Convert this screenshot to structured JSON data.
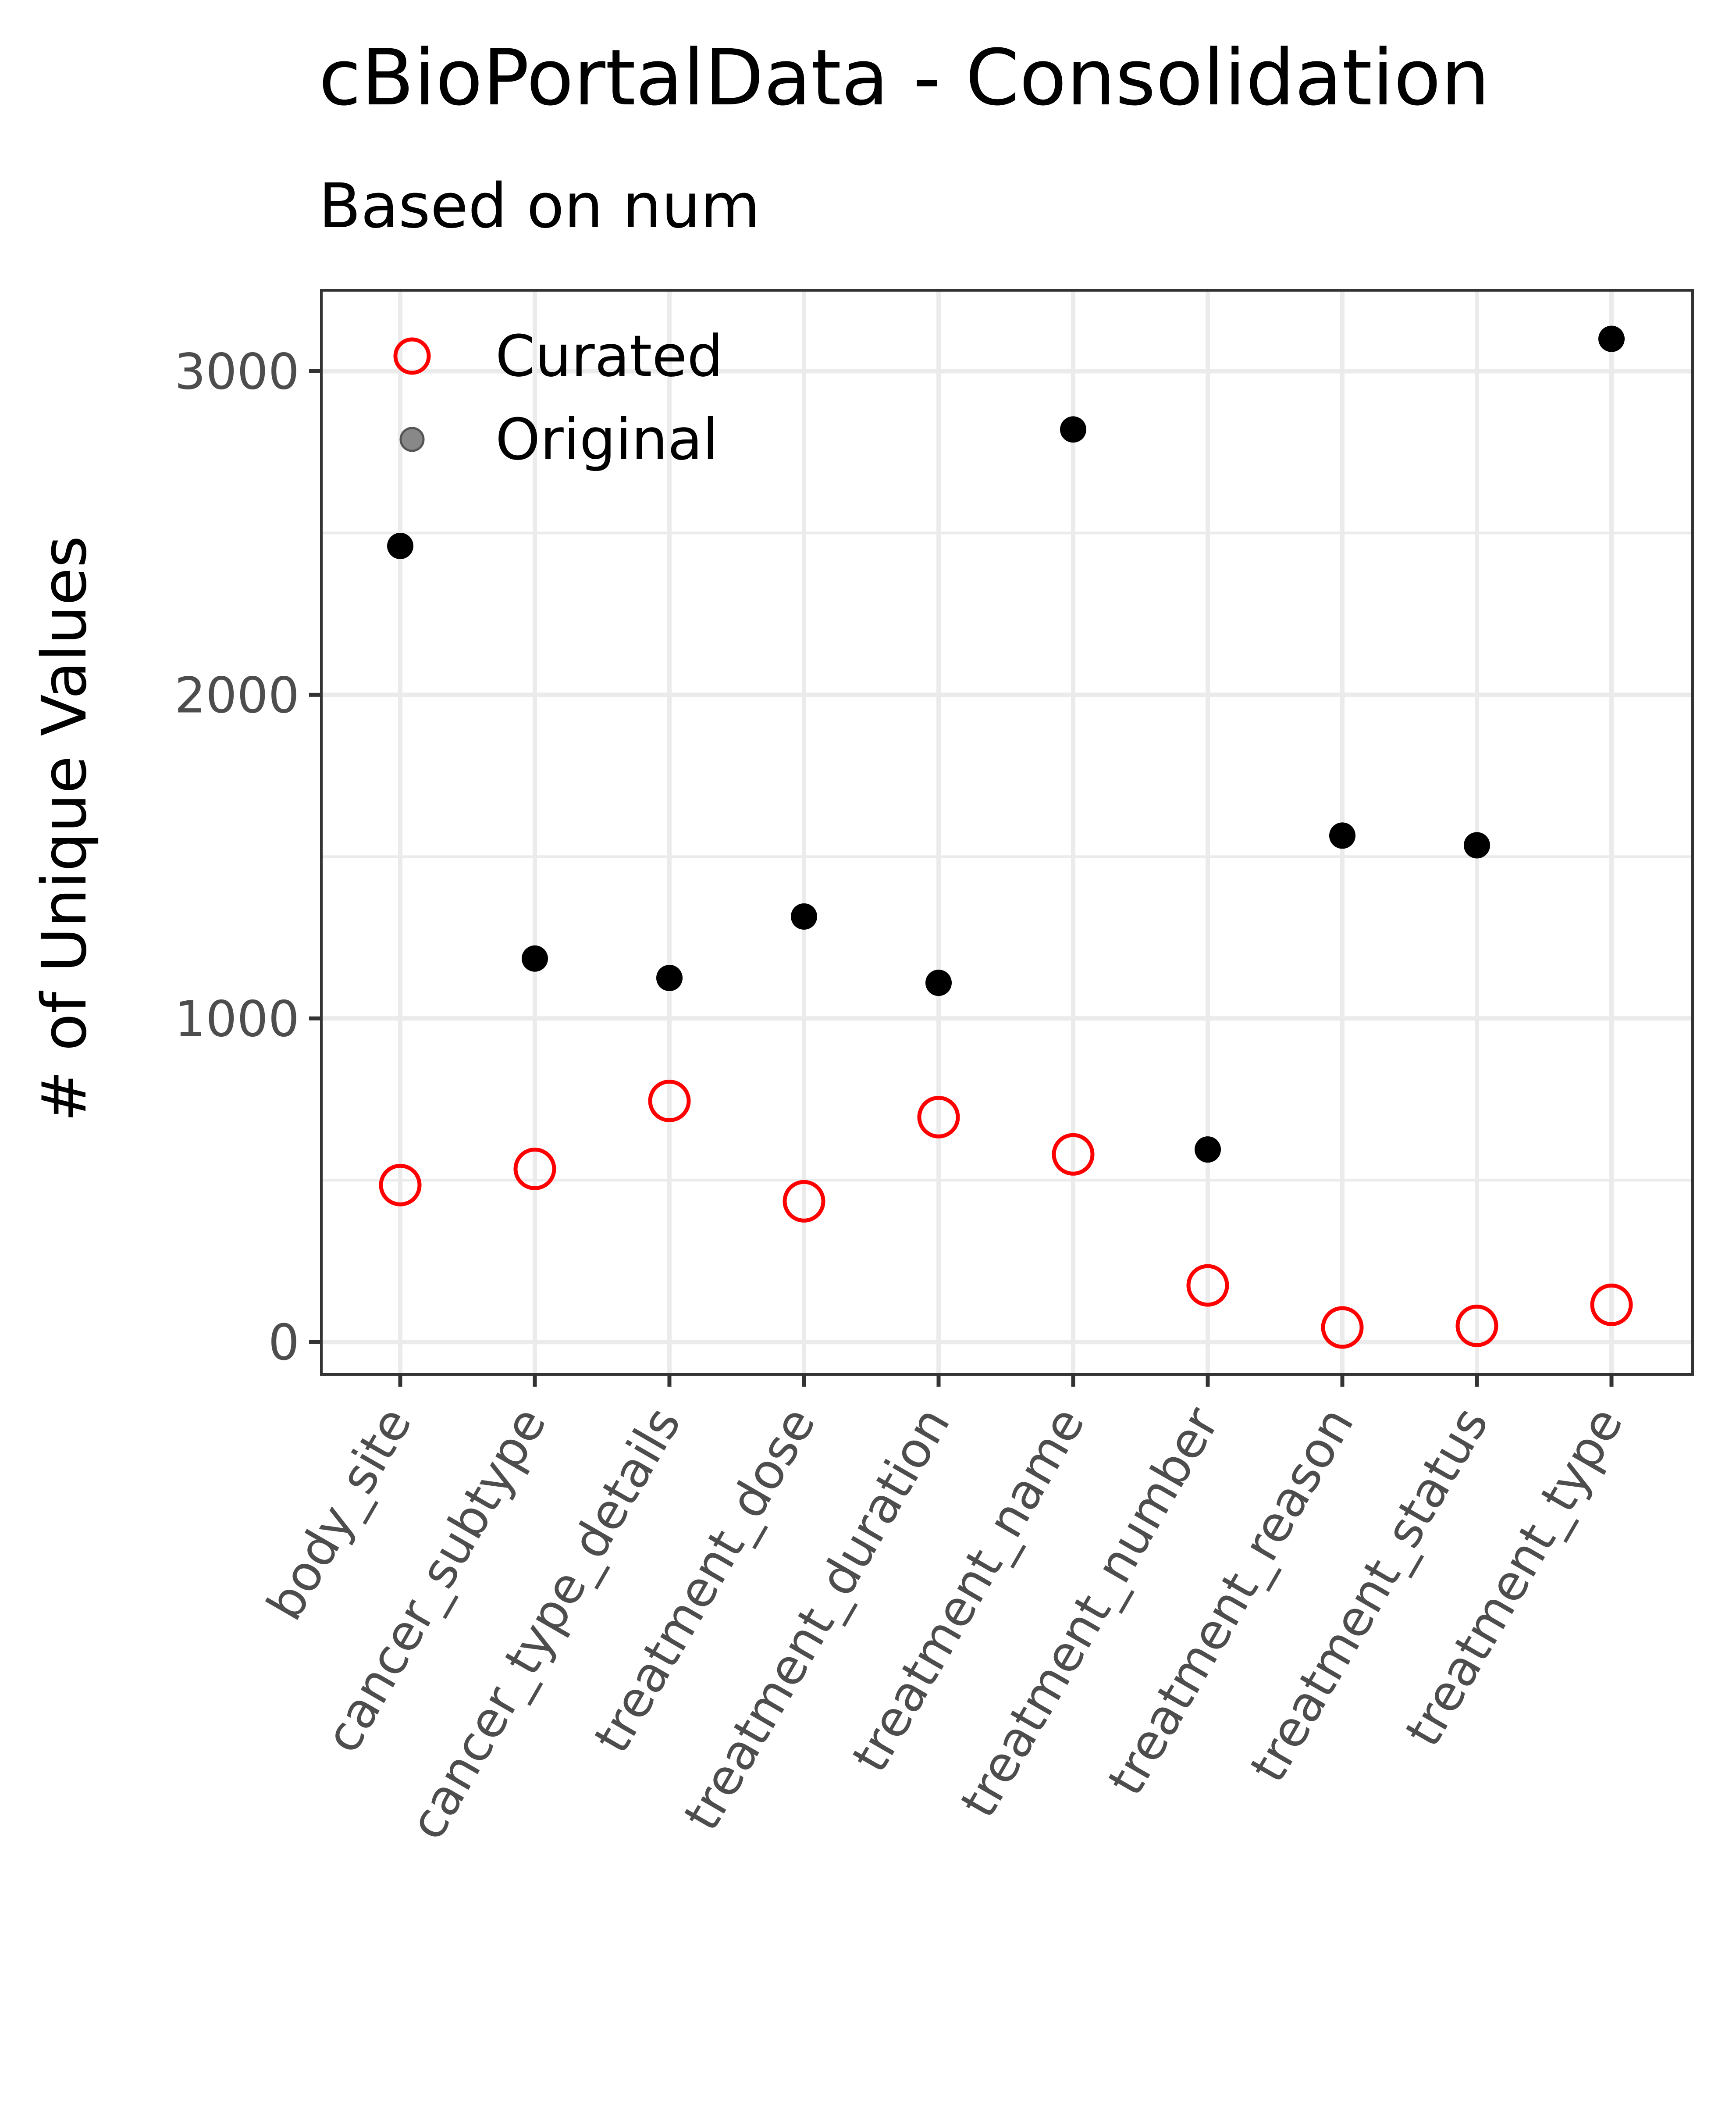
{
  "chart_data": {
    "type": "scatter",
    "title": "cBioPortalData - Consolidation",
    "subtitle": "Based on num",
    "xlabel": "",
    "ylabel": "# of Unique Values",
    "categories": [
      "body_site",
      "cancer_subtype",
      "cancer_type_details",
      "treatment_dose",
      "treatment_duration",
      "treatment_name",
      "treatment_number",
      "treatment_reason",
      "treatment_status",
      "treatment_type"
    ],
    "series": [
      {
        "name": "Curated",
        "marker": "open-circle",
        "color": "#ff0000",
        "values": [
          485,
          535,
          745,
          435,
          695,
          580,
          175,
          45,
          50,
          115
        ]
      },
      {
        "name": "Original",
        "marker": "filled-circle",
        "color": "#000000",
        "values": [
          2460,
          1185,
          1125,
          1315,
          1110,
          2820,
          595,
          1565,
          1535,
          3100
        ]
      }
    ],
    "ylim": [
      -100,
      3250
    ],
    "yticks": [
      0,
      1000,
      2000,
      3000
    ],
    "ytick_labels": [
      "0",
      "1000",
      "2000",
      "3000"
    ],
    "grid": true,
    "legend_position": "top-left"
  }
}
